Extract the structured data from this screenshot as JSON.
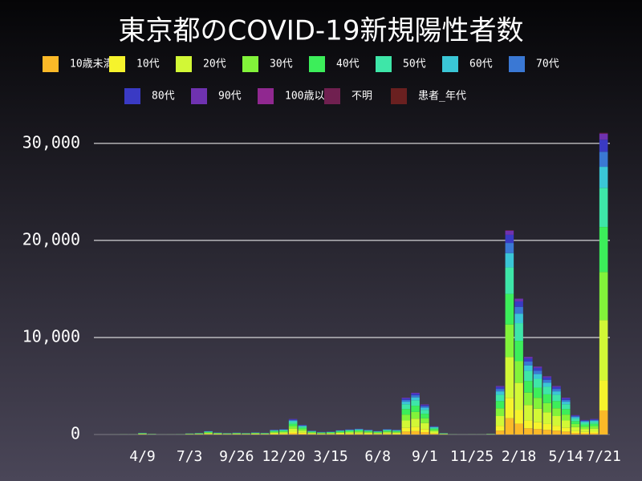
{
  "chart_data": {
    "type": "stacked_bar",
    "title": "東京都のCOVID-19新規陽性者数",
    "categories": [
      null,
      null,
      null,
      null,
      null,
      "4/9",
      null,
      null,
      null,
      null,
      "7/3",
      null,
      null,
      null,
      null,
      "9/26",
      null,
      null,
      null,
      null,
      "12/20",
      null,
      null,
      null,
      null,
      "3/15",
      null,
      null,
      null,
      null,
      "6/8",
      null,
      null,
      null,
      null,
      "9/1",
      null,
      null,
      null,
      null,
      "11/25",
      null,
      null,
      null,
      null,
      "2/18",
      null,
      null,
      null,
      null,
      "5/14",
      null,
      null,
      null,
      "7/21"
    ],
    "series": [
      {
        "name": "10歳未満",
        "color": "#fbb928",
        "values": [
          0,
          0,
          0,
          2,
          2,
          14,
          6,
          1,
          1,
          2,
          10,
          14,
          29,
          17,
          12,
          16,
          13,
          18,
          14,
          40,
          44,
          128,
          80,
          32,
          22,
          24,
          36,
          43,
          48,
          40,
          30,
          45,
          40,
          304,
          344,
          248,
          69,
          12,
          2,
          1,
          2,
          2,
          6,
          400,
          1680,
          1120,
          640,
          560,
          480,
          400,
          304,
          160,
          120,
          128,
          2480
        ]
      },
      {
        "name": "10代",
        "color": "#f6f32c",
        "values": [
          0,
          0,
          1,
          2,
          2,
          18,
          7,
          1,
          2,
          3,
          12,
          17,
          36,
          21,
          15,
          20,
          16,
          22,
          18,
          50,
          55,
          160,
          100,
          40,
          27,
          30,
          45,
          54,
          60,
          50,
          37,
          56,
          50,
          380,
          430,
          310,
          86,
          15,
          3,
          1,
          2,
          2,
          8,
          500,
          2100,
          1400,
          800,
          700,
          600,
          500,
          380,
          200,
          150,
          160,
          3100
        ]
      },
      {
        "name": "20代",
        "color": "#d2f836",
        "values": [
          0,
          0,
          1,
          4,
          4,
          36,
          14,
          2,
          3,
          6,
          24,
          34,
          72,
          42,
          30,
          40,
          32,
          44,
          36,
          100,
          110,
          320,
          200,
          80,
          54,
          60,
          90,
          108,
          120,
          100,
          74,
          112,
          100,
          760,
          860,
          620,
          172,
          30,
          5,
          2,
          4,
          4,
          16,
          1000,
          4200,
          2800,
          1600,
          1400,
          1200,
          1000,
          760,
          400,
          300,
          320,
          6200
        ]
      },
      {
        "name": "30代",
        "color": "#82f33a",
        "values": [
          0,
          0,
          1,
          3,
          3,
          29,
          11,
          2,
          2,
          5,
          19,
          27,
          58,
          34,
          24,
          32,
          26,
          35,
          29,
          80,
          88,
          256,
          160,
          64,
          43,
          48,
          72,
          86,
          96,
          80,
          59,
          90,
          80,
          608,
          688,
          496,
          138,
          24,
          4,
          2,
          3,
          3,
          13,
          800,
          3360,
          2240,
          1280,
          1120,
          960,
          800,
          608,
          320,
          240,
          256,
          4960
        ]
      },
      {
        "name": "40代",
        "color": "#3cee5a",
        "values": [
          0,
          0,
          1,
          3,
          3,
          27,
          11,
          1,
          2,
          5,
          18,
          26,
          54,
          32,
          23,
          30,
          24,
          33,
          27,
          75,
          83,
          240,
          150,
          60,
          41,
          45,
          68,
          81,
          90,
          75,
          56,
          84,
          75,
          570,
          645,
          465,
          129,
          23,
          4,
          1,
          3,
          3,
          12,
          750,
          3150,
          2100,
          1200,
          1050,
          900,
          750,
          570,
          300,
          225,
          240,
          4650
        ]
      },
      {
        "name": "50代",
        "color": "#3ee6a8",
        "values": [
          0,
          0,
          1,
          3,
          3,
          23,
          9,
          1,
          2,
          4,
          16,
          22,
          47,
          27,
          20,
          26,
          21,
          29,
          23,
          65,
          72,
          208,
          130,
          52,
          35,
          39,
          59,
          70,
          78,
          65,
          48,
          73,
          65,
          494,
          559,
          403,
          112,
          20,
          3,
          1,
          3,
          3,
          10,
          650,
          2730,
          1820,
          1040,
          910,
          780,
          650,
          494,
          260,
          195,
          208,
          4030
        ]
      },
      {
        "name": "60代",
        "color": "#3ac6d6",
        "values": [
          0,
          0,
          0,
          1,
          1,
          13,
          5,
          1,
          1,
          2,
          8,
          12,
          25,
          15,
          11,
          14,
          11,
          15,
          13,
          35,
          39,
          112,
          70,
          28,
          19,
          21,
          32,
          38,
          42,
          35,
          26,
          39,
          35,
          266,
          301,
          217,
          60,
          11,
          2,
          1,
          1,
          1,
          6,
          350,
          1470,
          980,
          560,
          490,
          420,
          350,
          266,
          140,
          105,
          112,
          2170
        ]
      },
      {
        "name": "70代",
        "color": "#3a78d4",
        "values": [
          0,
          0,
          0,
          1,
          1,
          9,
          4,
          1,
          1,
          2,
          6,
          9,
          18,
          11,
          8,
          10,
          8,
          11,
          9,
          25,
          28,
          80,
          50,
          20,
          14,
          15,
          23,
          27,
          30,
          25,
          19,
          28,
          25,
          190,
          215,
          155,
          43,
          8,
          1,
          1,
          1,
          1,
          4,
          250,
          1050,
          700,
          400,
          350,
          300,
          250,
          190,
          100,
          75,
          80,
          1550
        ]
      },
      {
        "name": "80代",
        "color": "#3a3ac4",
        "values": [
          0,
          0,
          0,
          1,
          1,
          7,
          3,
          0,
          1,
          1,
          5,
          7,
          14,
          8,
          6,
          8,
          6,
          9,
          7,
          20,
          22,
          64,
          40,
          16,
          11,
          12,
          18,
          22,
          24,
          20,
          15,
          22,
          20,
          152,
          172,
          124,
          34,
          6,
          1,
          0,
          1,
          1,
          3,
          200,
          840,
          560,
          320,
          280,
          240,
          200,
          152,
          80,
          60,
          64,
          1240
        ]
      },
      {
        "name": "90代",
        "color": "#6f32b0",
        "values": [
          0,
          0,
          0,
          0,
          0,
          4,
          1,
          0,
          0,
          1,
          2,
          3,
          7,
          4,
          3,
          4,
          3,
          4,
          4,
          10,
          11,
          32,
          20,
          8,
          5,
          6,
          9,
          11,
          12,
          10,
          7,
          11,
          10,
          76,
          86,
          62,
          17,
          3,
          1,
          0,
          0,
          0,
          2,
          100,
          420,
          280,
          160,
          140,
          120,
          100,
          76,
          40,
          30,
          32,
          620
        ]
      },
      {
        "name": "100歳以上",
        "color": "#902890",
        "values": [
          0,
          0,
          0,
          0,
          0,
          0,
          0,
          0,
          0,
          0,
          0,
          0,
          0,
          0,
          0,
          0,
          0,
          0,
          0,
          0,
          0,
          0,
          0,
          0,
          0,
          0,
          0,
          0,
          0,
          0,
          0,
          0,
          0,
          0,
          0,
          0,
          0,
          0,
          0,
          0,
          0,
          0,
          0,
          0,
          5,
          0,
          0,
          0,
          0,
          0,
          0,
          0,
          0,
          0,
          5
        ]
      },
      {
        "name": "不明",
        "color": "#702050",
        "values": [
          0,
          0,
          0,
          0,
          0,
          0,
          0,
          0,
          0,
          0,
          0,
          0,
          0,
          0,
          0,
          0,
          0,
          0,
          0,
          0,
          0,
          0,
          0,
          0,
          0,
          0,
          0,
          0,
          0,
          0,
          0,
          0,
          0,
          0,
          0,
          0,
          0,
          0,
          0,
          0,
          0,
          0,
          0,
          0,
          60,
          0,
          0,
          0,
          0,
          0,
          0,
          0,
          0,
          0,
          80
        ]
      },
      {
        "name": "患者_年代",
        "color": "#6a2020",
        "values": [
          0,
          0,
          0,
          0,
          0,
          0,
          0,
          0,
          0,
          0,
          0,
          0,
          0,
          0,
          0,
          0,
          0,
          0,
          0,
          0,
          0,
          0,
          0,
          0,
          0,
          0,
          0,
          0,
          0,
          0,
          0,
          0,
          0,
          0,
          0,
          0,
          0,
          0,
          0,
          0,
          0,
          0,
          0,
          0,
          0,
          0,
          0,
          0,
          0,
          0,
          0,
          0,
          0,
          0,
          0
        ]
      }
    ],
    "ylim": [
      0,
      32800
    ],
    "yticks": [
      0,
      {
        "value": 10000,
        "label": "10,000"
      },
      {
        "value": 20000,
        "label": "20,000"
      },
      {
        "value": 30000,
        "label": "30,000"
      }
    ],
    "grid": true
  }
}
